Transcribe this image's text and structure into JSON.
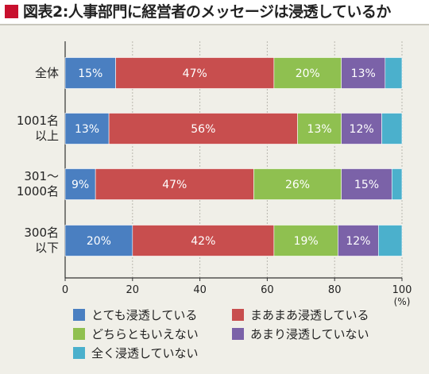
{
  "header": {
    "title": "図表2:人事部門に経営者のメッセージは浸透しているか"
  },
  "chart_data": {
    "type": "bar",
    "orientation": "horizontal",
    "stacked": true,
    "categories": [
      "全体",
      "1001名\n以上",
      "301〜\n1000名",
      "300名\n以下"
    ],
    "series": [
      {
        "name": "とても浸透している",
        "color": "#4a7fc1",
        "values": [
          15,
          13,
          9,
          20
        ]
      },
      {
        "name": "まあまあ浸透している",
        "color": "#c84e4e",
        "values": [
          47,
          56,
          47,
          42
        ]
      },
      {
        "name": "どちらともいえない",
        "color": "#8fc050",
        "values": [
          20,
          13,
          26,
          19
        ]
      },
      {
        "name": "あまり浸透していない",
        "color": "#7b62a8",
        "values": [
          13,
          12,
          15,
          12
        ]
      },
      {
        "name": "全く浸透していない",
        "color": "#4bb0cc",
        "values": [
          5,
          6,
          3,
          7
        ]
      }
    ],
    "labeled_series": [
      0,
      1,
      2,
      3
    ],
    "value_suffix": "%",
    "xlim": [
      0,
      100
    ],
    "xticks": [
      0,
      20,
      40,
      60,
      80,
      100
    ],
    "xunit": "(%)",
    "grid": true,
    "legend_position": "bottom"
  }
}
